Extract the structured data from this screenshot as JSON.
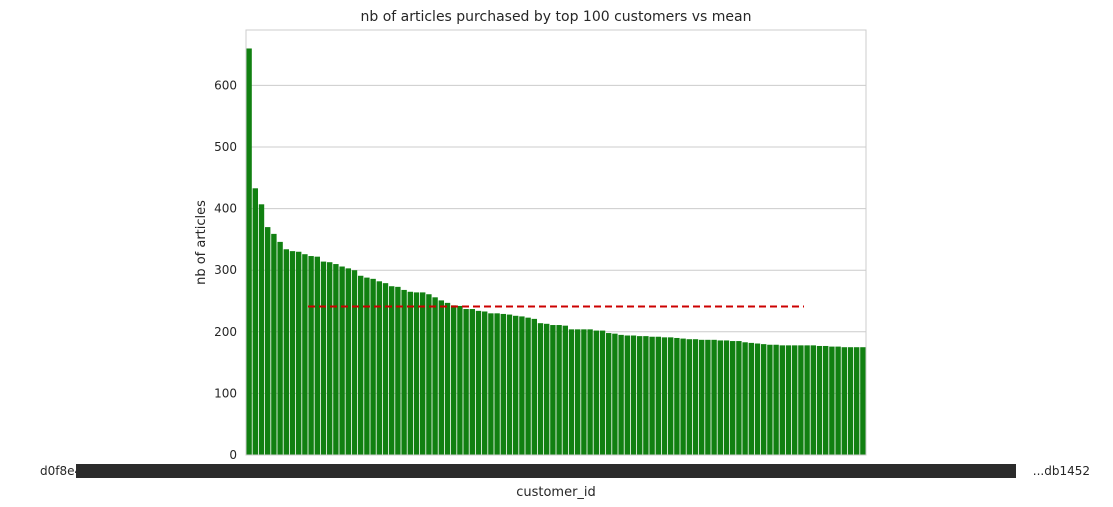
{
  "chart_data": {
    "type": "bar",
    "title": "nb of articles purchased by top 100 customers vs mean",
    "xlabel": "customer_id",
    "ylabel": "nb of articles",
    "ylim": [
      0,
      690
    ],
    "yticks": [
      0,
      100,
      200,
      300,
      400,
      500,
      600
    ],
    "grid": "horizontal",
    "bar_color": "#118011",
    "mean_line": {
      "value": 241,
      "color": "#cc0000",
      "style": "dashed",
      "x_start_index": 10,
      "x_end_index": 90
    },
    "x_tick_labels_visible": {
      "first": "d0f8e4",
      "last": "...db1452"
    },
    "values": [
      660,
      433,
      407,
      370,
      359,
      346,
      334,
      331,
      330,
      326,
      323,
      322,
      314,
      313,
      310,
      306,
      303,
      300,
      291,
      288,
      286,
      282,
      279,
      274,
      273,
      268,
      265,
      264,
      264,
      261,
      256,
      251,
      247,
      243,
      242,
      237,
      237,
      234,
      233,
      230,
      230,
      229,
      228,
      226,
      225,
      223,
      221,
      214,
      213,
      211,
      211,
      210,
      204,
      204,
      204,
      204,
      202,
      202,
      198,
      197,
      195,
      194,
      194,
      193,
      193,
      192,
      192,
      191,
      191,
      190,
      189,
      188,
      188,
      187,
      187,
      187,
      186,
      186,
      185,
      185,
      183,
      182,
      181,
      180,
      179,
      179,
      178,
      178,
      178,
      178,
      178,
      178,
      177,
      177,
      176,
      176,
      175,
      175,
      175,
      175
    ]
  }
}
